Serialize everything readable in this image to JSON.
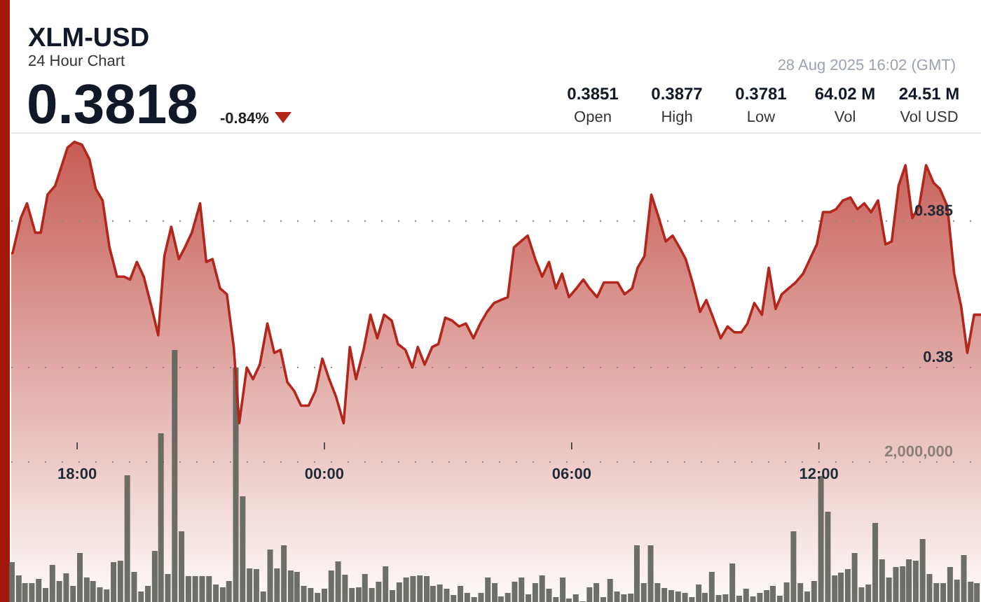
{
  "chart_data": {
    "type": "area",
    "title": "XLM-USD",
    "subtitle": "24 Hour Chart",
    "annotations": [
      "0.3818",
      "-0.84%",
      "0.3851",
      "Open",
      "0.3877",
      "High",
      "0.3781",
      "Low",
      "64.02 M",
      "Vol",
      "24.51 M",
      "Vol USD",
      "28 Aug 2025 16:02 (GMT)"
    ],
    "x": [
      "2025-08-27T16:24",
      "2025-08-27T16:26",
      "2025-08-27T16:38",
      "2025-08-27T16:47",
      "2025-08-27T16:59",
      "2025-08-27T17:07",
      "2025-08-27T17:17",
      "2025-08-27T17:28",
      "2025-08-27T17:46",
      "2025-08-27T17:56",
      "2025-08-27T18:07",
      "2025-08-27T18:18",
      "2025-08-27T18:27",
      "2025-08-27T18:37",
      "2025-08-27T18:47",
      "2025-08-27T18:58",
      "2025-08-27T19:08",
      "2025-08-27T19:17",
      "2025-08-27T19:27",
      "2025-08-27T19:37",
      "2025-08-27T19:49",
      "2025-08-27T19:58",
      "2025-08-27T20:07",
      "2025-08-27T20:17",
      "2025-08-27T20:28",
      "2025-08-27T20:37",
      "2025-08-27T20:47",
      "2025-08-27T20:59",
      "2025-08-27T21:08",
      "2025-08-27T21:17",
      "2025-08-27T21:28",
      "2025-08-27T21:38",
      "2025-08-27T21:48",
      "2025-08-27T21:56",
      "2025-08-27T22:07",
      "2025-08-27T22:16",
      "2025-08-27T22:26",
      "2025-08-27T22:37",
      "2025-08-27T22:47",
      "2025-08-27T22:56",
      "2025-08-27T23:06",
      "2025-08-27T23:16",
      "2025-08-27T23:26",
      "2025-08-27T23:37",
      "2025-08-27T23:47",
      "2025-08-27T23:57",
      "2025-08-28T00:07",
      "2025-08-28T00:17",
      "2025-08-28T00:28",
      "2025-08-28T00:37",
      "2025-08-28T00:46",
      "2025-08-28T00:57",
      "2025-08-28T01:07",
      "2025-08-28T01:17",
      "2025-08-28T01:27",
      "2025-08-28T01:38",
      "2025-08-28T01:47",
      "2025-08-28T01:58",
      "2025-08-28T02:08",
      "2025-08-28T02:16",
      "2025-08-28T02:26",
      "2025-08-28T02:37",
      "2025-08-28T02:46",
      "2025-08-28T02:56",
      "2025-08-28T03:06",
      "2025-08-28T03:16",
      "2025-08-28T03:26",
      "2025-08-28T03:37",
      "2025-08-28T03:47",
      "2025-08-28T03:57",
      "2025-08-28T04:07",
      "2025-08-28T04:17",
      "2025-08-28T04:27",
      "2025-08-28T04:36",
      "2025-08-28T04:46",
      "2025-08-28T04:56",
      "2025-08-28T05:07",
      "2025-08-28T05:17",
      "2025-08-28T05:27",
      "2025-08-28T05:37",
      "2025-08-28T05:46",
      "2025-08-28T05:56",
      "2025-08-28T06:07",
      "2025-08-28T06:17",
      "2025-08-28T06:26",
      "2025-08-28T06:37",
      "2025-08-28T06:47",
      "2025-08-28T06:57",
      "2025-08-28T07:07",
      "2025-08-28T07:17",
      "2025-08-28T07:28",
      "2025-08-28T07:36",
      "2025-08-28T07:46",
      "2025-08-28T07:56",
      "2025-08-28T08:07",
      "2025-08-28T08:17",
      "2025-08-28T08:27",
      "2025-08-28T08:37",
      "2025-08-28T08:46",
      "2025-08-28T08:56",
      "2025-08-28T09:07",
      "2025-08-28T09:16",
      "2025-08-28T09:26",
      "2025-08-28T09:37",
      "2025-08-28T09:47",
      "2025-08-28T09:57",
      "2025-08-28T10:07",
      "2025-08-28T10:16",
      "2025-08-28T10:26",
      "2025-08-28T10:37",
      "2025-08-28T10:47",
      "2025-08-28T10:57",
      "2025-08-28T11:06",
      "2025-08-28T11:16",
      "2025-08-28T11:26",
      "2025-08-28T11:37",
      "2025-08-28T11:47",
      "2025-08-28T11:57",
      "2025-08-28T12:06",
      "2025-08-28T12:16",
      "2025-08-28T12:25",
      "2025-08-28T12:35",
      "2025-08-28T12:46",
      "2025-08-28T12:56",
      "2025-08-28T13:06",
      "2025-08-28T13:16",
      "2025-08-28T13:26",
      "2025-08-28T13:37",
      "2025-08-28T13:46",
      "2025-08-28T13:56",
      "2025-08-28T14:06",
      "2025-08-28T14:16",
      "2025-08-28T14:26",
      "2025-08-28T14:36",
      "2025-08-28T14:47",
      "2025-08-28T14:56",
      "2025-08-28T15:07",
      "2025-08-28T15:17",
      "2025-08-28T15:27",
      "2025-08-28T15:36",
      "2025-08-28T15:46",
      "2025-08-28T15:56"
    ],
    "series": [
      {
        "color": "#b3261c",
        "values": [
          0.3839,
          0.3839,
          0.3851,
          0.3856,
          0.3846,
          0.3846,
          0.3859,
          0.3862,
          0.3875,
          0.3877,
          0.3876,
          0.3871,
          0.3861,
          0.3857,
          0.3841,
          0.3831,
          0.3831,
          0.383,
          0.3836,
          0.3831,
          0.382,
          0.3811,
          0.3838,
          0.3848,
          0.3837,
          0.3841,
          0.3846,
          0.3856,
          0.3836,
          0.3837,
          0.3827,
          0.3825,
          0.3807,
          0.3781,
          0.38,
          0.3796,
          0.3801,
          0.3815,
          0.3805,
          0.3806,
          0.3795,
          0.3792,
          0.3787,
          0.3787,
          0.3792,
          0.3803,
          0.3796,
          0.379,
          0.3781,
          0.3807,
          0.3796,
          0.3806,
          0.3818,
          0.381,
          0.3818,
          0.3816,
          0.3808,
          0.3806,
          0.38,
          0.3807,
          0.3801,
          0.3807,
          0.3808,
          0.3817,
          0.3816,
          0.3814,
          0.3815,
          0.381,
          0.3815,
          0.3819,
          0.3822,
          0.3823,
          0.3824,
          0.3841,
          0.3843,
          0.3845,
          0.3837,
          0.3831,
          0.3836,
          0.3827,
          0.3832,
          0.3824,
          0.3827,
          0.383,
          0.3827,
          0.3824,
          0.3829,
          0.3829,
          0.3829,
          0.3825,
          0.3827,
          0.3834,
          0.3838,
          0.3859,
          0.3851,
          0.3843,
          0.3845,
          0.3841,
          0.3837,
          0.3829,
          0.3819,
          0.3823,
          0.3817,
          0.381,
          0.3814,
          0.3812,
          0.3812,
          0.3815,
          0.3822,
          0.3818,
          0.3834,
          0.382,
          0.3825,
          0.3827,
          0.3829,
          0.3832,
          0.3837,
          0.3842,
          0.3853,
          0.3853,
          0.3854,
          0.3857,
          0.3858,
          0.3854,
          0.3856,
          0.3853,
          0.3857,
          0.3842,
          0.3843,
          0.3862,
          0.3869,
          0.3851,
          0.3855,
          0.3869,
          0.3863,
          0.3861,
          0.3855,
          0.3832,
          0.3821,
          0.3805,
          0.3818,
          0.3818
        ]
      },
      {
        "type": "bar",
        "axis": "y2",
        "color": "#5c6058",
        "x": [
          "2025-08-27T16:25",
          "2025-08-27T16:35",
          "2025-08-27T16:44",
          "2025-08-27T16:54",
          "2025-08-27T17:04",
          "2025-08-27T17:14",
          "2025-08-27T17:24",
          "2025-08-27T17:34",
          "2025-08-27T17:44",
          "2025-08-27T17:54",
          "2025-08-27T18:04",
          "2025-08-27T18:14",
          "2025-08-27T18:23",
          "2025-08-27T18:33",
          "2025-08-27T18:43",
          "2025-08-27T18:53",
          "2025-08-27T19:03",
          "2025-08-27T19:13",
          "2025-08-27T19:23",
          "2025-08-27T19:33",
          "2025-08-27T19:43",
          "2025-08-27T19:53",
          "2025-08-27T20:02",
          "2025-08-27T20:12",
          "2025-08-27T20:22",
          "2025-08-27T20:32",
          "2025-08-27T20:42",
          "2025-08-27T20:52",
          "2025-08-27T21:02",
          "2025-08-27T21:12",
          "2025-08-27T21:22",
          "2025-08-27T21:32",
          "2025-08-27T21:41",
          "2025-08-27T21:51",
          "2025-08-27T22:01",
          "2025-08-27T22:11",
          "2025-08-27T22:21",
          "2025-08-27T22:31",
          "2025-08-27T22:41",
          "2025-08-27T22:51",
          "2025-08-27T23:01",
          "2025-08-27T23:11",
          "2025-08-27T23:20",
          "2025-08-27T23:30",
          "2025-08-27T23:40",
          "2025-08-27T23:50",
          "2025-08-28T00:00",
          "2025-08-28T00:10",
          "2025-08-28T00:20",
          "2025-08-28T00:30",
          "2025-08-28T00:40",
          "2025-08-28T00:50",
          "2025-08-28T00:59",
          "2025-08-28T01:09",
          "2025-08-28T01:19",
          "2025-08-28T01:29",
          "2025-08-28T01:39",
          "2025-08-28T01:49",
          "2025-08-28T01:59",
          "2025-08-28T02:09",
          "2025-08-28T02:19",
          "2025-08-28T02:29",
          "2025-08-28T02:38",
          "2025-08-28T02:48",
          "2025-08-28T02:58",
          "2025-08-28T03:08",
          "2025-08-28T03:18",
          "2025-08-28T03:28",
          "2025-08-28T03:38",
          "2025-08-28T03:48",
          "2025-08-28T03:58",
          "2025-08-28T04:08",
          "2025-08-28T04:17",
          "2025-08-28T04:27",
          "2025-08-28T04:37",
          "2025-08-28T04:47",
          "2025-08-28T04:57",
          "2025-08-28T05:07",
          "2025-08-28T05:17",
          "2025-08-28T05:27",
          "2025-08-28T05:37",
          "2025-08-28T05:47",
          "2025-08-28T05:56",
          "2025-08-28T06:06",
          "2025-08-28T06:16",
          "2025-08-28T06:26",
          "2025-08-28T06:36",
          "2025-08-28T06:46",
          "2025-08-28T06:56",
          "2025-08-28T07:06",
          "2025-08-28T07:16",
          "2025-08-28T07:26",
          "2025-08-28T07:35",
          "2025-08-28T07:45",
          "2025-08-28T07:55",
          "2025-08-28T08:05",
          "2025-08-28T08:15",
          "2025-08-28T08:25",
          "2025-08-28T08:35",
          "2025-08-28T08:45",
          "2025-08-28T08:55",
          "2025-08-28T09:05",
          "2025-08-28T09:14",
          "2025-08-28T09:24",
          "2025-08-28T09:34",
          "2025-08-28T09:44",
          "2025-08-28T09:54",
          "2025-08-28T10:04",
          "2025-08-28T10:14",
          "2025-08-28T10:24",
          "2025-08-28T10:34",
          "2025-08-28T10:44",
          "2025-08-28T10:53",
          "2025-08-28T11:03",
          "2025-08-28T11:13",
          "2025-08-28T11:23",
          "2025-08-28T11:33",
          "2025-08-28T11:43",
          "2025-08-28T11:53",
          "2025-08-28T12:03",
          "2025-08-28T12:13",
          "2025-08-28T12:23",
          "2025-08-28T12:32",
          "2025-08-28T12:42",
          "2025-08-28T12:52",
          "2025-08-28T13:02",
          "2025-08-28T13:12",
          "2025-08-28T13:22",
          "2025-08-28T13:32",
          "2025-08-28T13:42",
          "2025-08-28T13:52",
          "2025-08-28T14:02",
          "2025-08-28T14:11",
          "2025-08-28T14:21",
          "2025-08-28T14:31",
          "2025-08-28T14:41",
          "2025-08-28T14:51",
          "2025-08-28T15:01",
          "2025-08-28T15:11",
          "2025-08-28T15:21",
          "2025-08-28T15:31",
          "2025-08-28T15:41",
          "2025-08-28T15:50"
        ],
        "values": [
          570000,
          380000,
          270000,
          270000,
          330000,
          200000,
          530000,
          300000,
          410000,
          230000,
          700000,
          350000,
          300000,
          210000,
          180000,
          570000,
          590000,
          1810000,
          430000,
          150000,
          230000,
          730000,
          2410000,
          400000,
          3600000,
          1010000,
          370000,
          370000,
          370000,
          370000,
          250000,
          210000,
          300000,
          3350000,
          1510000,
          480000,
          470000,
          150000,
          750000,
          480000,
          810000,
          450000,
          430000,
          230000,
          200000,
          130000,
          190000,
          450000,
          580000,
          390000,
          200000,
          210000,
          400000,
          200000,
          290000,
          510000,
          170000,
          280000,
          350000,
          370000,
          380000,
          370000,
          230000,
          250000,
          190000,
          100000,
          230000,
          130000,
          70000,
          130000,
          350000,
          270000,
          80000,
          130000,
          290000,
          350000,
          110000,
          270000,
          380000,
          190000,
          70000,
          350000,
          50000,
          110000,
          10000,
          210000,
          270000,
          70000,
          330000,
          150000,
          110000,
          120000,
          810000,
          270000,
          810000,
          270000,
          200000,
          170000,
          150000,
          130000,
          70000,
          250000,
          130000,
          430000,
          100000,
          110000,
          550000,
          90000,
          190000,
          80000,
          130000,
          170000,
          230000,
          90000,
          280000,
          1010000,
          270000,
          150000,
          300000,
          1800000,
          1290000,
          380000,
          420000,
          470000,
          700000,
          210000,
          250000,
          1130000,
          610000,
          350000,
          500000,
          510000,
          610000,
          590000,
          900000,
          400000,
          270000,
          270000,
          500000,
          320000,
          670000,
          290000,
          270000
        ]
      }
    ],
    "xlim": [
      "2025-08-27T16:24",
      "2025-08-28T15:56"
    ],
    "xticks": [
      {
        "value": "2025-08-27T18:00",
        "label": "18:00"
      },
      {
        "value": "2025-08-28T00:00",
        "label": "00:00"
      },
      {
        "value": "2025-08-28T06:00",
        "label": "06:00"
      },
      {
        "value": "2025-08-28T12:00",
        "label": "12:00"
      }
    ],
    "ylim": [
      0.372,
      0.388
    ],
    "yticks": [
      0.38,
      0.385
    ],
    "y2lim": [
      0,
      6700000
    ],
    "y2ticks": [
      {
        "value": 2000000,
        "label": "2,000,000"
      }
    ],
    "grid": "y",
    "marker": "none",
    "line_style": "solid"
  }
}
